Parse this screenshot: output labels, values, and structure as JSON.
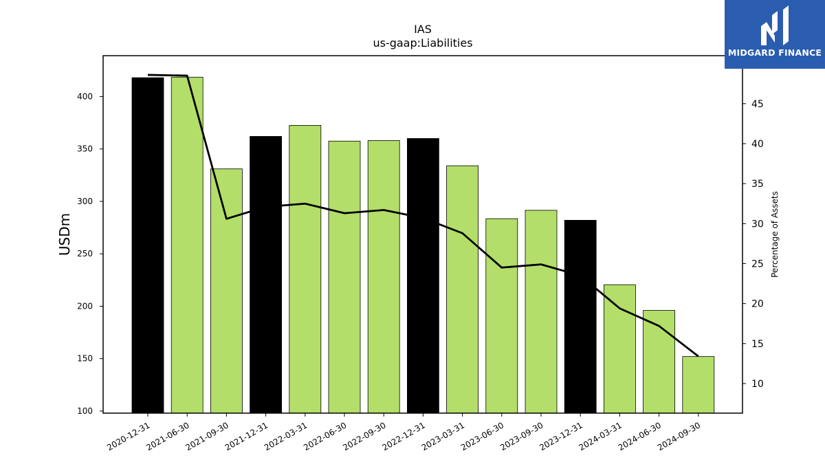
{
  "logo": {
    "text": "MIDGARD FINANCE",
    "color": "#2a5db0"
  },
  "chart_data": {
    "type": "bar",
    "title": "IAS",
    "subtitle": "us-gaap:Liabilities",
    "ylabel": "USDm",
    "y2label": "Percentage of Assets",
    "categories": [
      "2020-12-31",
      "2021-06-30",
      "2021-09-30",
      "2021-12-31",
      "2022-03-31",
      "2022-06-30",
      "2022-09-30",
      "2022-12-31",
      "2023-03-31",
      "2023-06-30",
      "2023-09-30",
      "2023-12-31",
      "2024-03-31",
      "2024-06-30",
      "2024-09-30"
    ],
    "values": [
      418,
      418.5,
      331,
      362,
      372.5,
      357.5,
      358,
      360,
      334,
      283.5,
      291.5,
      282,
      220.5,
      196,
      152
    ],
    "bar_colors": [
      "#000000",
      "#b3de69",
      "#b3de69",
      "#000000",
      "#b3de69",
      "#b3de69",
      "#b3de69",
      "#000000",
      "#b3de69",
      "#b3de69",
      "#b3de69",
      "#000000",
      "#b3de69",
      "#b3de69",
      "#b3de69"
    ],
    "line": {
      "name": "Percentage of Assets",
      "values": [
        48.6,
        48.5,
        30.6,
        32.1,
        32.5,
        31.3,
        31.7,
        30.7,
        28.8,
        24.5,
        24.9,
        23.5,
        19.4,
        17.2,
        13.4
      ],
      "color": "#000000"
    },
    "ylim": [
      98,
      439
    ],
    "y2lim": [
      6.3,
      51.0
    ],
    "yticks": [
      100,
      150,
      200,
      250,
      300,
      350,
      400
    ],
    "y2ticks": [
      10,
      15,
      20,
      25,
      30,
      35,
      40,
      45
    ],
    "grid": false,
    "legend": "none"
  }
}
